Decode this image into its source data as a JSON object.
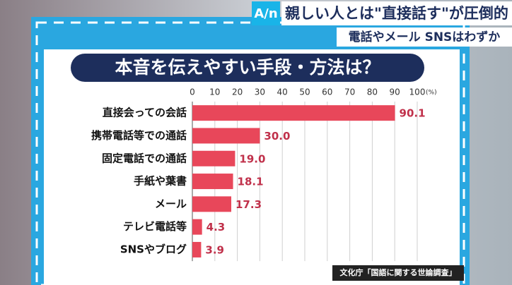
{
  "headline": "親しい人とは\"直接話す\"が圧倒的",
  "logo": "A/n",
  "subheadline": "電話やメール SNSはわずか",
  "chart_data": {
    "type": "barh",
    "title": "本音を伝えやすい手段・方法は？",
    "x_unit": "(%)",
    "categories": [
      "直接会っての会話",
      "携帯電話等での通話",
      "固定電話での通話",
      "手紙や葉書",
      "メール",
      "テレビ電話等",
      "SNSやブログ"
    ],
    "values": [
      90.1,
      30.0,
      19.0,
      18.1,
      17.3,
      4.3,
      3.9
    ],
    "value_labels": [
      "90.1",
      "30.0",
      "19.0",
      "18.1",
      "17.3",
      "4.3",
      "3.9"
    ],
    "color": "#e8475a",
    "xlim": [
      0,
      100
    ],
    "xticks": [
      0,
      10,
      20,
      30,
      40,
      50,
      60,
      70,
      80,
      90,
      100
    ],
    "grid": true
  },
  "source": "文化庁「国語に関する世論調査」"
}
